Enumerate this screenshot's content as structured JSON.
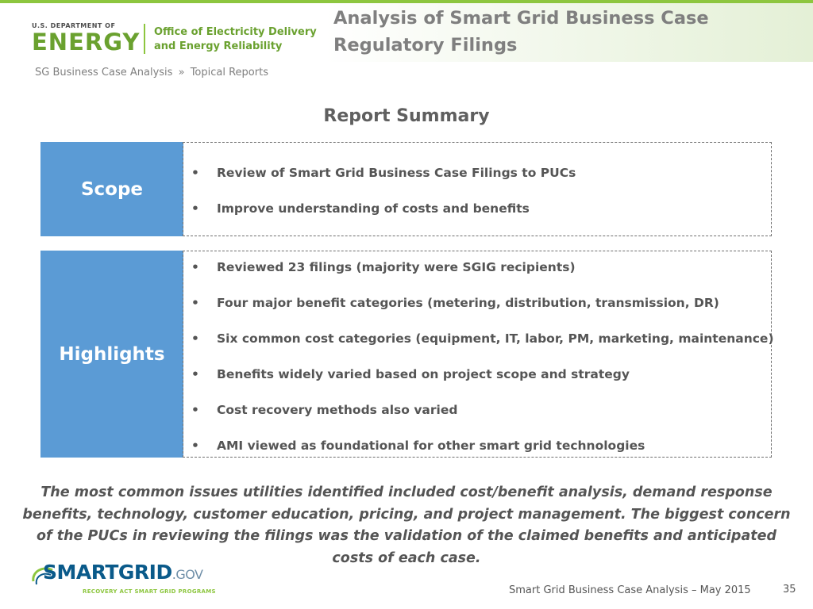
{
  "header": {
    "logo": {
      "org_small": "U.S. DEPARTMENT OF",
      "org_big": "ENERGY",
      "office_line1": "Office of Electricity Delivery",
      "office_line2": "and Energy Reliability"
    },
    "title": "Analysis of Smart Grid Business Case Regulatory Filings",
    "breadcrumb": {
      "parent": "SG Business Case Analysis",
      "separator": "»",
      "current": "Topical Reports"
    }
  },
  "section_heading": "Report Summary",
  "scope": {
    "label": "Scope",
    "items": [
      "Review of Smart Grid Business Case Filings to PUCs",
      "Improve understanding of costs and benefits"
    ]
  },
  "highlights": {
    "label": "Highlights",
    "items": [
      "Reviewed 23 filings (majority were SGIG recipients)",
      "Four major benefit categories (metering, distribution, transmission, DR)",
      "Six common cost categories (equipment, IT, labor, PM, marketing, maintenance)",
      "Benefits widely varied based  on project scope and strategy",
      "Cost recovery methods also varied",
      "AMI viewed as foundational for other smart grid technologies"
    ]
  },
  "bullet_char": "•",
  "conclusion": "The most common issues utilities identified included cost/benefit analysis, demand response benefits, technology, customer education, pricing, and project management. The biggest concern of the PUCs in reviewing the filings was the validation of the claimed benefits and anticipated costs of each case.",
  "footer": {
    "logo": {
      "brand_main": "SMARTGRID",
      "brand_suffix": ".GOV",
      "tagline": "RECOVERY ACT SMART GRID PROGRAMS"
    },
    "text": "Smart Grid Business Case Analysis – May 2015",
    "page_number": "35"
  },
  "colors": {
    "label_fill": "#5b9bd5",
    "doe_green": "#6aa12f",
    "text_gray": "#555555"
  }
}
